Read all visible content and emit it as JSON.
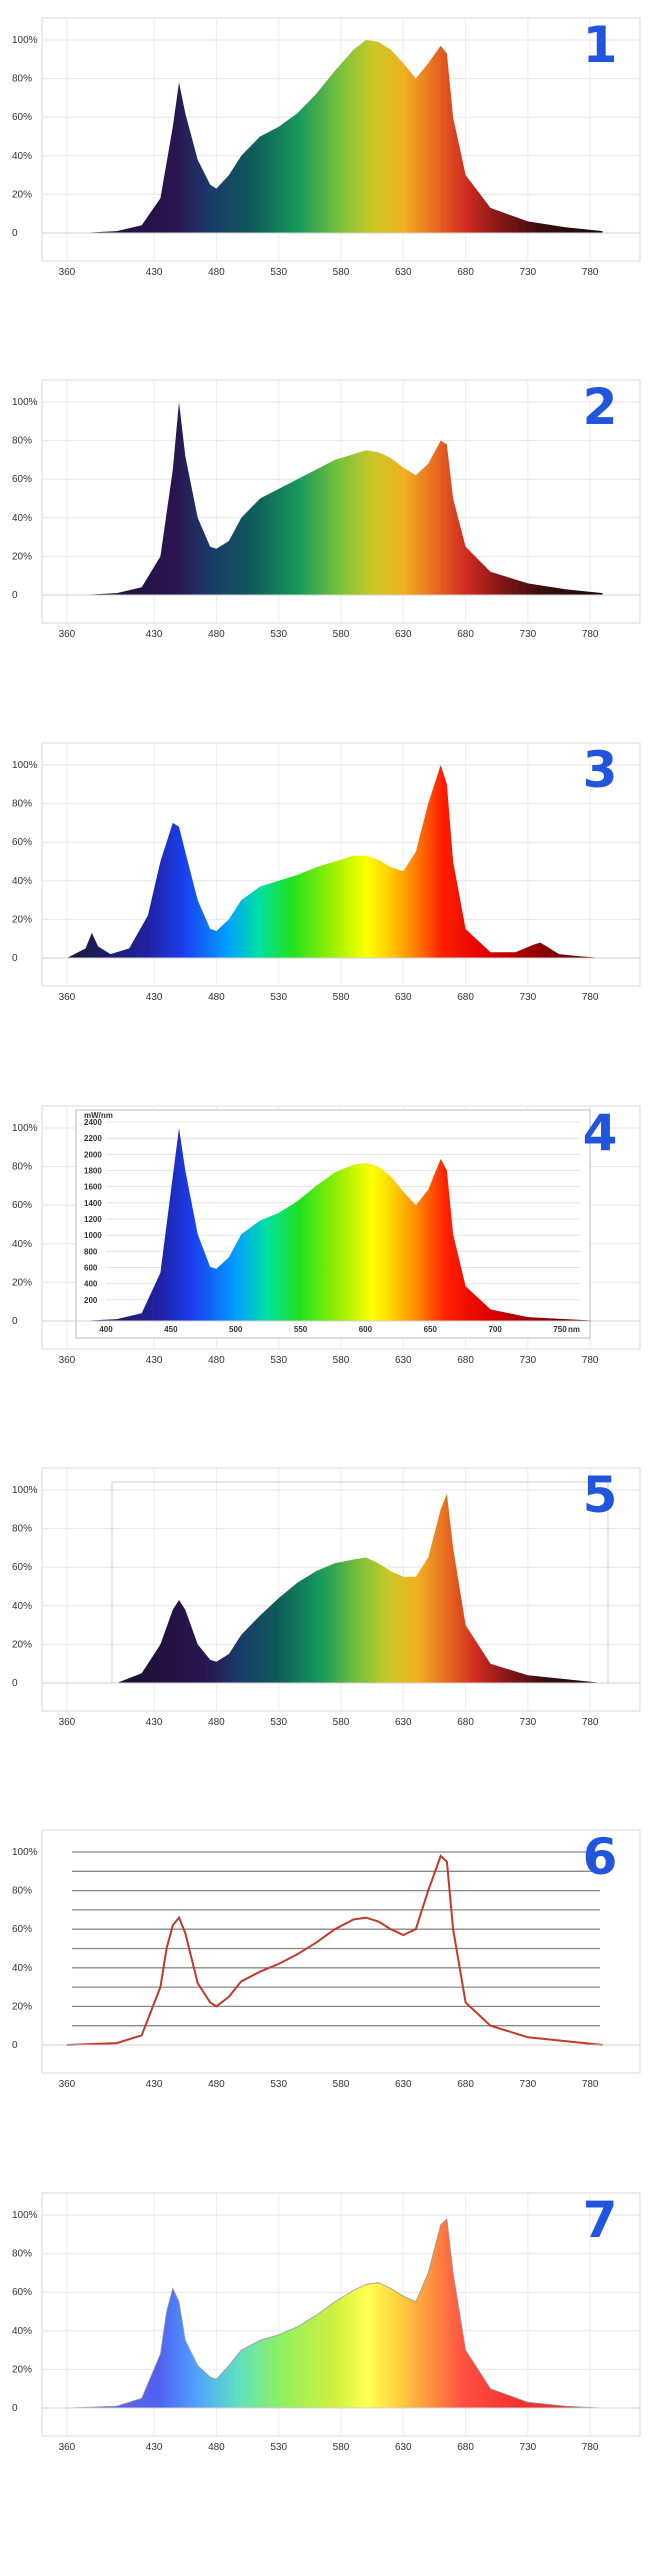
{
  "axis": {
    "x_ticks": [
      360,
      430,
      480,
      530,
      580,
      630,
      680,
      730,
      780
    ],
    "y_ticks": [
      "0",
      "20%",
      "40%",
      "60%",
      "80%",
      "100%"
    ]
  },
  "chart_data": [
    {
      "label": "1",
      "type": "area",
      "style": "spectrum-dark",
      "xlim": [
        340,
        820
      ],
      "ylim": [
        0,
        1
      ],
      "x": [
        370,
        400,
        420,
        435,
        445,
        450,
        455,
        465,
        475,
        480,
        490,
        500,
        515,
        530,
        545,
        560,
        575,
        590,
        600,
        610,
        620,
        630,
        640,
        650,
        660,
        665,
        670,
        680,
        700,
        730,
        760,
        790
      ],
      "y": [
        0,
        0.01,
        0.04,
        0.18,
        0.55,
        0.78,
        0.62,
        0.38,
        0.25,
        0.23,
        0.3,
        0.4,
        0.5,
        0.55,
        0.62,
        0.72,
        0.84,
        0.95,
        1.0,
        0.99,
        0.95,
        0.88,
        0.8,
        0.88,
        0.97,
        0.93,
        0.6,
        0.3,
        0.13,
        0.06,
        0.03,
        0.01
      ]
    },
    {
      "label": "2",
      "type": "area",
      "style": "spectrum-dark",
      "xlim": [
        340,
        820
      ],
      "ylim": [
        0,
        1
      ],
      "x": [
        370,
        400,
        420,
        435,
        445,
        450,
        455,
        465,
        475,
        480,
        490,
        500,
        515,
        530,
        545,
        560,
        575,
        590,
        600,
        610,
        620,
        630,
        640,
        650,
        660,
        665,
        670,
        680,
        700,
        730,
        760,
        790
      ],
      "y": [
        0,
        0.01,
        0.04,
        0.2,
        0.65,
        1.0,
        0.72,
        0.4,
        0.25,
        0.24,
        0.28,
        0.4,
        0.5,
        0.55,
        0.6,
        0.65,
        0.7,
        0.73,
        0.75,
        0.74,
        0.71,
        0.66,
        0.62,
        0.68,
        0.8,
        0.78,
        0.5,
        0.25,
        0.12,
        0.06,
        0.03,
        0.01
      ]
    },
    {
      "label": "3",
      "type": "area",
      "style": "spectrum-bright",
      "xlim": [
        340,
        820
      ],
      "ylim": [
        0,
        1
      ],
      "x": [
        360,
        375,
        380,
        385,
        395,
        410,
        425,
        435,
        445,
        450,
        455,
        465,
        475,
        480,
        490,
        500,
        515,
        530,
        545,
        560,
        575,
        590,
        600,
        610,
        620,
        630,
        640,
        650,
        660,
        665,
        670,
        680,
        700,
        720,
        735,
        740,
        745,
        755,
        770,
        790
      ],
      "y": [
        0,
        0.05,
        0.13,
        0.06,
        0.02,
        0.05,
        0.22,
        0.5,
        0.7,
        0.68,
        0.55,
        0.3,
        0.15,
        0.14,
        0.2,
        0.3,
        0.37,
        0.4,
        0.43,
        0.47,
        0.5,
        0.53,
        0.53,
        0.51,
        0.47,
        0.45,
        0.55,
        0.8,
        1.0,
        0.9,
        0.5,
        0.15,
        0.03,
        0.03,
        0.07,
        0.08,
        0.06,
        0.02,
        0.01,
        0
      ]
    },
    {
      "label": "4",
      "type": "area",
      "style": "spectrum-bright",
      "xlim": [
        340,
        820
      ],
      "ylim": [
        0,
        1
      ],
      "inset": {
        "unit": "mW/nm",
        "y_ticks": [
          "200",
          "400",
          "600",
          "800",
          "1000",
          "1200",
          "1400",
          "1600",
          "1800",
          "2000",
          "2200",
          "2400"
        ],
        "x_ticks": [
          "400",
          "450",
          "500",
          "550",
          "600",
          "650",
          "700",
          "750"
        ],
        "x_unit": "nm"
      },
      "x": [
        370,
        400,
        420,
        435,
        445,
        450,
        455,
        465,
        475,
        480,
        490,
        500,
        515,
        530,
        545,
        560,
        575,
        590,
        600,
        610,
        620,
        630,
        640,
        650,
        660,
        665,
        670,
        680,
        700,
        730,
        760,
        790
      ],
      "y": [
        0,
        0.01,
        0.04,
        0.25,
        0.75,
        1.0,
        0.78,
        0.45,
        0.28,
        0.27,
        0.33,
        0.45,
        0.52,
        0.56,
        0.62,
        0.7,
        0.77,
        0.81,
        0.82,
        0.8,
        0.75,
        0.67,
        0.6,
        0.68,
        0.84,
        0.78,
        0.45,
        0.18,
        0.06,
        0.02,
        0.01,
        0
      ]
    },
    {
      "label": "5",
      "type": "area",
      "style": "spectrum-dark",
      "xlim": [
        340,
        820
      ],
      "ylim": [
        0,
        1
      ],
      "x": [
        400,
        420,
        435,
        445,
        450,
        455,
        465,
        475,
        480,
        490,
        500,
        515,
        530,
        545,
        560,
        575,
        590,
        600,
        610,
        620,
        630,
        640,
        650,
        660,
        665,
        670,
        680,
        700,
        730,
        760,
        790
      ],
      "y": [
        0,
        0.05,
        0.2,
        0.38,
        0.43,
        0.38,
        0.2,
        0.12,
        0.11,
        0.15,
        0.25,
        0.35,
        0.44,
        0.52,
        0.58,
        0.62,
        0.64,
        0.65,
        0.62,
        0.58,
        0.55,
        0.55,
        0.65,
        0.9,
        0.98,
        0.7,
        0.3,
        0.1,
        0.04,
        0.02,
        0
      ]
    },
    {
      "label": "6",
      "type": "line",
      "style": "red-line",
      "xlim": [
        340,
        820
      ],
      "ylim": [
        0,
        1
      ],
      "x": [
        360,
        400,
        420,
        435,
        440,
        445,
        450,
        455,
        465,
        475,
        480,
        490,
        500,
        515,
        530,
        545,
        560,
        575,
        590,
        600,
        610,
        620,
        630,
        640,
        650,
        660,
        665,
        670,
        680,
        700,
        730,
        760,
        790
      ],
      "y": [
        0,
        0.01,
        0.05,
        0.3,
        0.5,
        0.62,
        0.66,
        0.58,
        0.32,
        0.22,
        0.2,
        0.25,
        0.33,
        0.38,
        0.42,
        0.47,
        0.53,
        0.6,
        0.65,
        0.66,
        0.64,
        0.6,
        0.57,
        0.6,
        0.8,
        0.98,
        0.95,
        0.6,
        0.22,
        0.1,
        0.04,
        0.02,
        0
      ]
    },
    {
      "label": "7",
      "type": "area",
      "style": "spectrum-pastel",
      "xlim": [
        340,
        820
      ],
      "ylim": [
        0,
        1
      ],
      "x": [
        360,
        400,
        420,
        435,
        440,
        445,
        450,
        455,
        465,
        475,
        480,
        490,
        500,
        515,
        530,
        545,
        560,
        575,
        590,
        600,
        610,
        620,
        630,
        640,
        650,
        660,
        665,
        670,
        680,
        700,
        730,
        760,
        790
      ],
      "y": [
        0,
        0.01,
        0.05,
        0.28,
        0.5,
        0.62,
        0.55,
        0.35,
        0.22,
        0.16,
        0.15,
        0.22,
        0.3,
        0.35,
        0.38,
        0.42,
        0.48,
        0.55,
        0.61,
        0.64,
        0.65,
        0.62,
        0.58,
        0.55,
        0.7,
        0.95,
        0.98,
        0.7,
        0.3,
        0.1,
        0.03,
        0.01,
        0
      ]
    }
  ]
}
